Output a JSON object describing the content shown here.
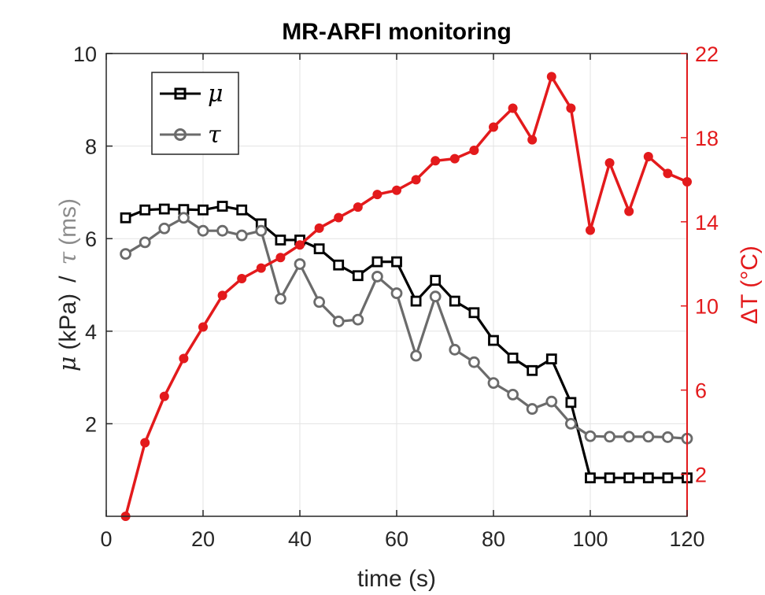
{
  "chart_data": {
    "type": "line",
    "title": "MR-ARFI monitoring",
    "xlabel": "time (s)",
    "ylabel_left": {
      "mu_symbol": "μ",
      "mu_unit": "(kPa)",
      "separator": "/",
      "tau_symbol": "τ",
      "tau_unit": "(ms)"
    },
    "ylabel_right": "ΔT (°C)",
    "xlim": [
      0,
      120
    ],
    "ylim_left": [
      0,
      10
    ],
    "ylim_right": [
      0,
      22
    ],
    "x_ticks": [
      0,
      20,
      40,
      60,
      80,
      100,
      120
    ],
    "y_left_ticks": [
      2,
      4,
      6,
      8,
      10
    ],
    "y_right_ticks": [
      2,
      6,
      10,
      14,
      18,
      22
    ],
    "grid": true,
    "legend_position": "top-left",
    "series": [
      {
        "name": "μ",
        "axis": "left",
        "color": "#000000",
        "marker": "square",
        "x": [
          4,
          8,
          12,
          16,
          20,
          24,
          28,
          32,
          36,
          40,
          44,
          48,
          52,
          56,
          60,
          64,
          68,
          72,
          76,
          80,
          84,
          88,
          92,
          96,
          100,
          104,
          108,
          112,
          116,
          120
        ],
        "values": [
          6.45,
          6.62,
          6.64,
          6.63,
          6.62,
          6.7,
          6.62,
          6.32,
          5.97,
          5.97,
          5.78,
          5.43,
          5.2,
          5.5,
          5.5,
          4.65,
          5.1,
          4.65,
          4.4,
          3.8,
          3.42,
          3.15,
          3.4,
          2.46,
          0.83,
          0.83,
          0.83,
          0.83,
          0.83,
          0.83
        ]
      },
      {
        "name": "τ",
        "axis": "left",
        "color": "#6b6b6b",
        "marker": "circle",
        "x": [
          4,
          8,
          12,
          16,
          20,
          24,
          28,
          32,
          36,
          40,
          44,
          48,
          52,
          56,
          60,
          64,
          68,
          72,
          76,
          80,
          84,
          88,
          92,
          96,
          100,
          104,
          108,
          112,
          116,
          120
        ],
        "values": [
          5.67,
          5.92,
          6.22,
          6.45,
          6.17,
          6.17,
          6.07,
          6.17,
          4.7,
          5.45,
          4.63,
          4.21,
          4.25,
          5.18,
          4.82,
          3.47,
          4.75,
          3.6,
          3.33,
          2.88,
          2.63,
          2.32,
          2.48,
          2.0,
          1.73,
          1.72,
          1.72,
          1.72,
          1.71,
          1.68
        ]
      },
      {
        "name": "ΔT",
        "axis": "right",
        "color": "#e31a1c",
        "marker": "dot",
        "x": [
          4,
          8,
          12,
          16,
          20,
          24,
          28,
          32,
          36,
          40,
          44,
          48,
          52,
          56,
          60,
          64,
          68,
          72,
          76,
          80,
          84,
          88,
          92,
          96,
          100,
          104,
          108,
          112,
          116,
          120
        ],
        "values": [
          0.0,
          3.5,
          5.7,
          7.5,
          9.0,
          10.5,
          11.3,
          11.8,
          12.3,
          12.9,
          13.7,
          14.2,
          14.7,
          15.3,
          15.5,
          16.0,
          16.9,
          17.0,
          17.4,
          18.5,
          19.4,
          17.9,
          20.9,
          19.4,
          13.6,
          16.8,
          14.5,
          17.1,
          16.3,
          15.9
        ]
      }
    ]
  }
}
